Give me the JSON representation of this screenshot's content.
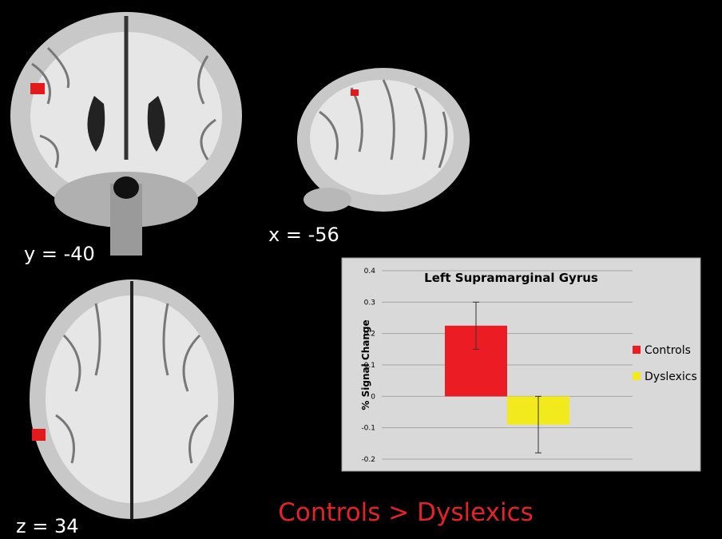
{
  "slices": {
    "coronal": "y = -40",
    "sagittal": "x = -56",
    "axial": "z = 34"
  },
  "caption": "Controls > Dyslexics",
  "chart_data": {
    "type": "bar",
    "title": "Left Supramarginal Gyrus",
    "y_label": "% Signal Change",
    "categories": [
      null
    ],
    "series": [
      {
        "name": "Controls",
        "color": "#ec1c24",
        "values": [
          0.225
        ],
        "errors": [
          0.075
        ]
      },
      {
        "name": "Dyslexics",
        "color": "#f2ea1c",
        "values": [
          -0.09
        ],
        "errors": [
          0.09
        ]
      }
    ],
    "ylim": [
      -0.2,
      0.4
    ],
    "yticks": [
      -0.2,
      -0.1,
      0,
      0.1,
      0.2,
      0.3,
      0.4
    ],
    "grid": true,
    "legend": "right"
  }
}
